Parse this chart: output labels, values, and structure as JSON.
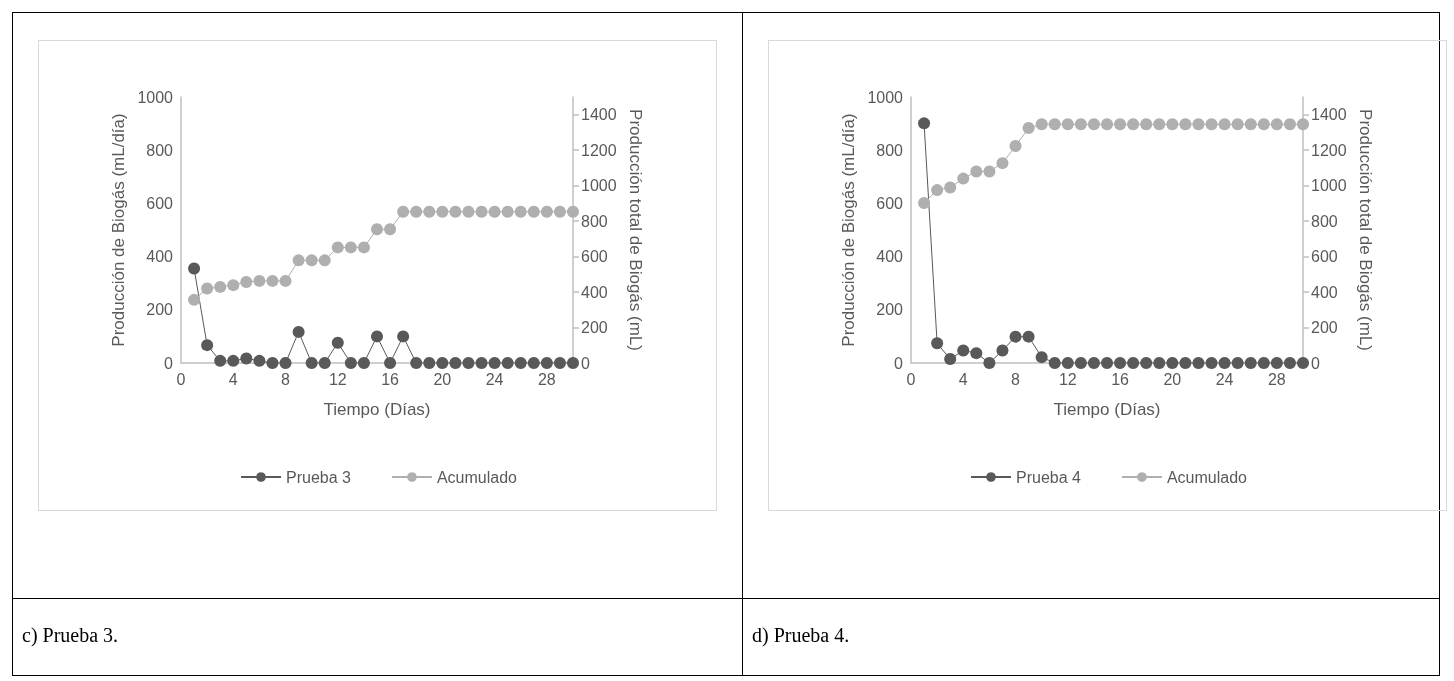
{
  "chart_data": [
    {
      "type": "line",
      "xlabel": "Tiempo (Días)",
      "ylabel": "Producción de Biogás (mL/día)",
      "y2label": "Producción total de Biogás (mL)",
      "x": [
        1,
        2,
        3,
        4,
        5,
        6,
        7,
        8,
        9,
        10,
        11,
        12,
        13,
        14,
        15,
        16,
        17,
        18,
        19,
        20,
        21,
        22,
        23,
        24,
        25,
        26,
        27,
        28,
        29,
        30
      ],
      "series": [
        {
          "name": "Prueba 3",
          "color": "#595959",
          "values": [
            355,
            67,
            8,
            8,
            17,
            8,
            0,
            0,
            117,
            0,
            0,
            76,
            0,
            0,
            100,
            0,
            100,
            0,
            0,
            0,
            0,
            0,
            0,
            0,
            0,
            0,
            0,
            0,
            0,
            0
          ]
        },
        {
          "name": "Acumulado",
          "color": "#afafaf",
          "axis": "y2",
          "values": [
            356,
            420,
            429,
            439,
            457,
            463,
            463,
            463,
            579,
            579,
            579,
            652,
            652,
            652,
            754,
            754,
            853,
            853,
            853,
            853,
            853,
            853,
            853,
            853,
            853,
            853,
            853,
            853,
            853,
            853
          ]
        }
      ],
      "xlim": [
        0,
        30
      ],
      "xticks": [
        0,
        4,
        8,
        12,
        16,
        20,
        24,
        28
      ],
      "ylim": [
        0,
        1000
      ],
      "yticks": [
        0,
        200,
        400,
        600,
        800,
        1000
      ],
      "y2lim": [
        0,
        1500
      ],
      "y2ticks": [
        0,
        200,
        400,
        600,
        800,
        1000,
        1200,
        1400
      ],
      "legend": "bottom",
      "marker": "circle",
      "grid": false,
      "annotations": [
        "c) Prueba 3."
      ]
    },
    {
      "type": "line",
      "xlabel": "Tiempo (Días)",
      "ylabel": "Producción de Biogás (mL/día)",
      "y2label": "Producción total de Biogás (mL)",
      "x": [
        1,
        2,
        3,
        4,
        5,
        6,
        7,
        8,
        9,
        10,
        11,
        12,
        13,
        14,
        15,
        16,
        17,
        18,
        19,
        20,
        21,
        22,
        23,
        24,
        25,
        26,
        27,
        28,
        29,
        30
      ],
      "series": [
        {
          "name": "Prueba 4",
          "color": "#595959",
          "values": [
            901,
            74,
            15,
            47,
            37,
            0,
            47,
            99,
            99,
            22,
            0,
            0,
            0,
            0,
            0,
            0,
            0,
            0,
            0,
            0,
            0,
            0,
            0,
            0,
            0,
            0,
            0,
            0,
            0,
            0
          ]
        },
        {
          "name": "Acumulado",
          "color": "#afafaf",
          "axis": "y2",
          "values": [
            902,
            975,
            990,
            1040,
            1080,
            1080,
            1127,
            1224,
            1325,
            1346,
            1346,
            1346,
            1346,
            1346,
            1346,
            1346,
            1346,
            1346,
            1346,
            1346,
            1346,
            1346,
            1346,
            1346,
            1346,
            1346,
            1346,
            1346,
            1346,
            1346
          ]
        }
      ],
      "xlim": [
        0,
        30
      ],
      "xticks": [
        0,
        4,
        8,
        12,
        16,
        20,
        24,
        28
      ],
      "ylim": [
        0,
        1000
      ],
      "yticks": [
        0,
        200,
        400,
        600,
        800,
        1000
      ],
      "y2lim": [
        0,
        1500
      ],
      "y2ticks": [
        0,
        200,
        400,
        600,
        800,
        1000,
        1200,
        1400
      ],
      "legend": "bottom",
      "marker": "circle",
      "grid": false,
      "annotations": [
        "d) Prueba 4."
      ]
    }
  ]
}
